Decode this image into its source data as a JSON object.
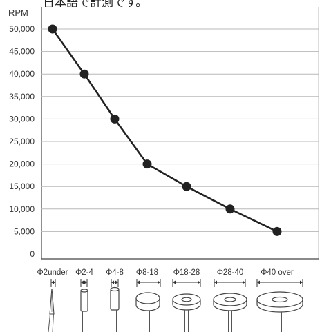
{
  "header_fragment": "日本語で計測です。",
  "chart_data": {
    "type": "line",
    "ylabel": "RPM",
    "xlabel": "",
    "title": "",
    "ylim": [
      0,
      50000
    ],
    "yticks": [
      "0",
      "5,000",
      "10,000",
      "15,000",
      "20,000",
      "25,000",
      "30,000",
      "35,000",
      "40,000",
      "45,000",
      "50,000"
    ],
    "grid": true,
    "categories": [
      "Φ2under",
      "Φ2-4",
      "Φ4-8",
      "Φ8-18",
      "Φ18-28",
      "Φ28-40",
      "Φ40 over"
    ],
    "series": [
      {
        "values": [
          50000,
          40000,
          30000,
          20000,
          15000,
          10000,
          5000
        ]
      }
    ],
    "line_color": "#222222",
    "grid_color": "#b8b8b8",
    "tool_icons": [
      "point-tool-icon",
      "small-cylinder-tool-icon",
      "cylinder-tool-icon",
      "disc-tool-icon",
      "wheel-small-icon",
      "wheel-medium-icon",
      "wheel-large-icon"
    ]
  }
}
